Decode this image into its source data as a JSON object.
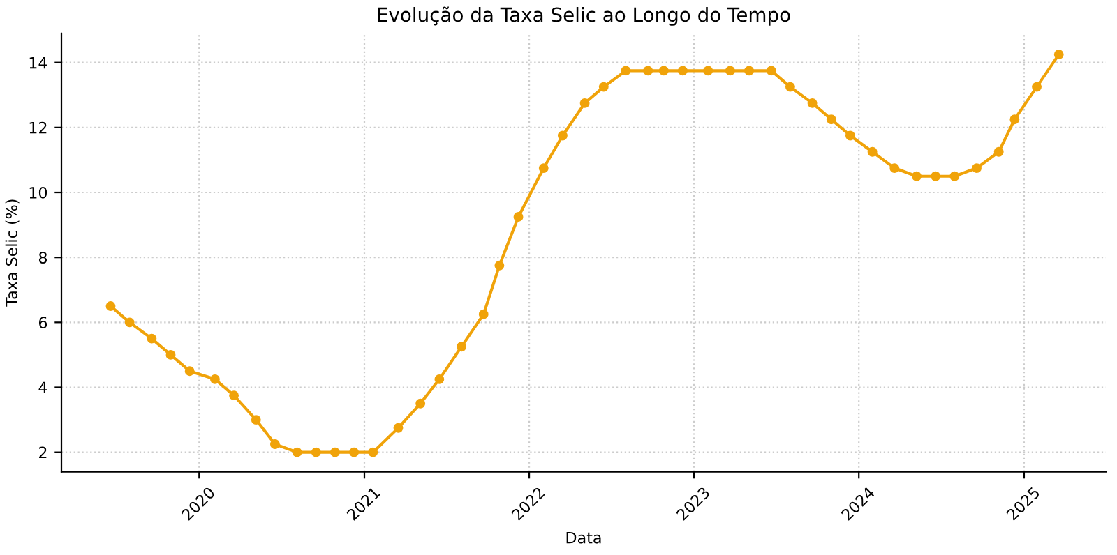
{
  "chart_data": {
    "type": "line",
    "title": "Evolução da Taxa Selic ao Longo do Tempo",
    "xlabel": "Data",
    "ylabel": "Taxa Selic (%)",
    "x": [
      "2019-06-19",
      "2019-07-31",
      "2019-09-18",
      "2019-10-30",
      "2019-12-11",
      "2020-02-05",
      "2020-03-18",
      "2020-05-06",
      "2020-06-17",
      "2020-08-05",
      "2020-09-16",
      "2020-10-28",
      "2020-12-09",
      "2021-01-20",
      "2021-03-17",
      "2021-05-05",
      "2021-06-16",
      "2021-08-04",
      "2021-09-22",
      "2021-10-27",
      "2021-12-08",
      "2022-02-02",
      "2022-03-16",
      "2022-05-04",
      "2022-06-15",
      "2022-08-03",
      "2022-09-21",
      "2022-10-26",
      "2022-12-07",
      "2023-02-01",
      "2023-03-22",
      "2023-05-03",
      "2023-06-21",
      "2023-08-02",
      "2023-09-20",
      "2023-11-01",
      "2023-12-13",
      "2024-01-31",
      "2024-03-20",
      "2024-05-08",
      "2024-06-19",
      "2024-07-31",
      "2024-09-18",
      "2024-11-06",
      "2024-12-11",
      "2025-01-29",
      "2025-03-19"
    ],
    "series": [
      {
        "color": "#f0a30a",
        "values": [
          6.5,
          6.0,
          5.5,
          5.0,
          4.5,
          4.25,
          3.75,
          3.0,
          2.25,
          2.0,
          2.0,
          2.0,
          2.0,
          2.0,
          2.75,
          3.5,
          4.25,
          5.25,
          6.25,
          7.75,
          9.25,
          10.75,
          11.75,
          12.75,
          13.25,
          13.75,
          13.75,
          13.75,
          13.75,
          13.75,
          13.75,
          13.75,
          13.75,
          13.25,
          12.75,
          12.25,
          11.75,
          11.25,
          10.75,
          10.5,
          10.5,
          10.5,
          10.75,
          11.25,
          12.25,
          13.25,
          14.25
        ]
      }
    ],
    "xlim": [
      "2019-03-02",
      "2025-07-01"
    ],
    "xticks": [
      "2020",
      "2021",
      "2022",
      "2023",
      "2024",
      "2025"
    ],
    "ylim": [
      1.4,
      14.9
    ],
    "yticks": [
      2,
      4,
      6,
      8,
      10,
      12,
      14
    ],
    "grid": true,
    "marker": "circle",
    "line_style": "solid"
  }
}
